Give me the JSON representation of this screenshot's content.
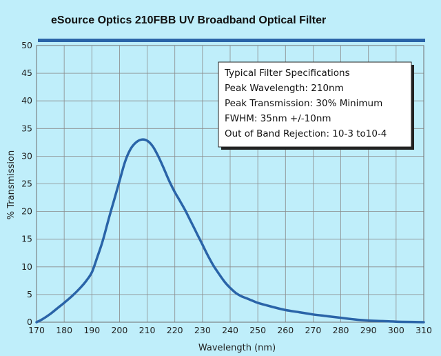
{
  "colors": {
    "background": "#bfeefa",
    "accent_bar": "#2a64a8",
    "curve": "#2a64a8",
    "grid": "#8a8a8a"
  },
  "specs_box": {
    "lines": [
      "Typical Filter Specifications",
      "Peak Wavelength: 210nm",
      "Peak Transmission: 30% Minimum",
      "FWHM: 35nm +/-10nm",
      "Out of Band Rejection: 10-3 to10-4"
    ]
  },
  "chart_data": {
    "type": "line",
    "title": "eSource Optics 210FBB UV Broadband Optical Filter",
    "xlabel": "Wavelength (nm)",
    "ylabel": "% Transmission",
    "xlim": [
      170,
      310
    ],
    "ylim": [
      0,
      50
    ],
    "xticks": [
      170,
      180,
      190,
      200,
      210,
      220,
      230,
      240,
      250,
      260,
      270,
      280,
      290,
      300,
      310
    ],
    "yticks": [
      0,
      5,
      10,
      15,
      20,
      25,
      30,
      35,
      40,
      45,
      50
    ],
    "grid": true,
    "series": [
      {
        "x": [
          170,
          172,
          175,
          178,
          180,
          183,
          186,
          188,
          190,
          192,
          194,
          196,
          198,
          200,
          202,
          204,
          206,
          208,
          210,
          212,
          214,
          216,
          218,
          220,
          222,
          224,
          226,
          228,
          230,
          232,
          234,
          236,
          238,
          240,
          242,
          244,
          246,
          248,
          250,
          255,
          260,
          265,
          270,
          275,
          280,
          285,
          290,
          295,
          300,
          305,
          310
        ],
        "y": [
          0,
          0.5,
          1.5,
          2.7,
          3.5,
          4.8,
          6.3,
          7.5,
          9.0,
          11.8,
          14.8,
          18.5,
          22.0,
          25.5,
          29.0,
          31.3,
          32.5,
          33.0,
          32.8,
          31.8,
          30.0,
          27.8,
          25.5,
          23.5,
          21.8,
          20.0,
          18.0,
          16.0,
          14.0,
          12.0,
          10.2,
          8.7,
          7.3,
          6.2,
          5.3,
          4.7,
          4.3,
          3.9,
          3.5,
          2.8,
          2.2,
          1.8,
          1.4,
          1.1,
          0.8,
          0.5,
          0.3,
          0.2,
          0.1,
          0.05,
          0
        ]
      }
    ]
  }
}
